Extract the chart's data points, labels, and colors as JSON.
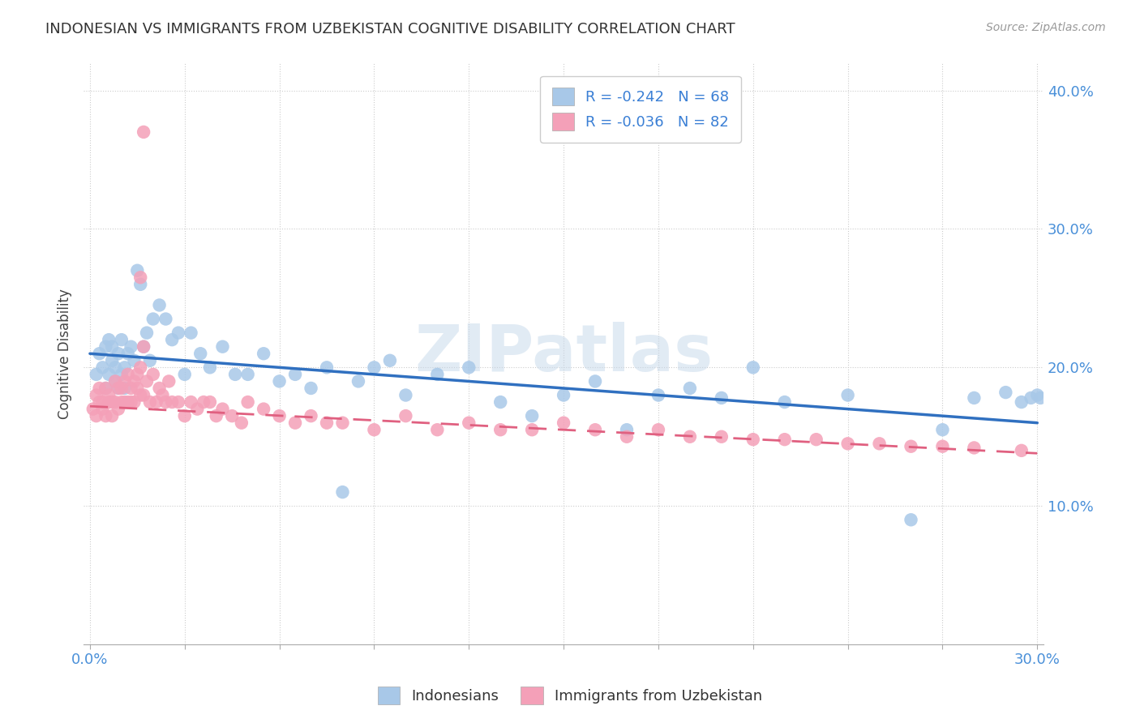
{
  "title": "INDONESIAN VS IMMIGRANTS FROM UZBEKISTAN COGNITIVE DISABILITY CORRELATION CHART",
  "source": "Source: ZipAtlas.com",
  "xlabel_indonesian": "Indonesians",
  "xlabel_uzbek": "Immigrants from Uzbekistan",
  "ylabel": "Cognitive Disability",
  "R_indonesian": -0.242,
  "N_indonesian": 68,
  "R_uzbek": -0.036,
  "N_uzbek": 82,
  "color_indonesian": "#a8c8e8",
  "color_uzbek": "#f4a0b8",
  "line_color_indonesian": "#3070c0",
  "line_color_uzbek": "#e06080",
  "watermark": "ZIPatlas",
  "xlim": [
    -0.002,
    0.302
  ],
  "ylim": [
    0.0,
    0.42
  ],
  "xtick_positions": [
    0.0,
    0.03,
    0.06,
    0.09,
    0.12,
    0.15,
    0.18,
    0.21,
    0.24,
    0.27,
    0.3
  ],
  "xtick_labels_show": [
    true,
    false,
    false,
    false,
    false,
    false,
    false,
    false,
    false,
    false,
    true
  ],
  "xtick_label_left": "0.0%",
  "xtick_label_right": "30.0%",
  "ytick_right": [
    0.1,
    0.2,
    0.3,
    0.4
  ],
  "ytick_right_labels": [
    "10.0%",
    "20.0%",
    "30.0%",
    "40.0%"
  ],
  "background_color": "#ffffff",
  "line_ind_y0": 0.21,
  "line_ind_y1": 0.16,
  "line_uzb_y0": 0.172,
  "line_uzb_y1": 0.138,
  "ind_x": [
    0.002,
    0.003,
    0.004,
    0.005,
    0.005,
    0.006,
    0.006,
    0.007,
    0.007,
    0.008,
    0.008,
    0.009,
    0.009,
    0.01,
    0.01,
    0.011,
    0.011,
    0.012,
    0.013,
    0.014,
    0.015,
    0.016,
    0.017,
    0.018,
    0.019,
    0.02,
    0.022,
    0.024,
    0.026,
    0.028,
    0.03,
    0.032,
    0.035,
    0.038,
    0.042,
    0.046,
    0.05,
    0.055,
    0.06,
    0.065,
    0.07,
    0.075,
    0.08,
    0.085,
    0.09,
    0.095,
    0.1,
    0.11,
    0.12,
    0.13,
    0.14,
    0.15,
    0.16,
    0.17,
    0.18,
    0.19,
    0.2,
    0.21,
    0.22,
    0.24,
    0.26,
    0.27,
    0.28,
    0.29,
    0.295,
    0.298,
    0.3,
    0.301
  ],
  "ind_y": [
    0.195,
    0.21,
    0.2,
    0.215,
    0.185,
    0.22,
    0.195,
    0.205,
    0.215,
    0.19,
    0.2,
    0.21,
    0.185,
    0.22,
    0.195,
    0.2,
    0.185,
    0.21,
    0.215,
    0.205,
    0.27,
    0.26,
    0.215,
    0.225,
    0.205,
    0.235,
    0.245,
    0.235,
    0.22,
    0.225,
    0.195,
    0.225,
    0.21,
    0.2,
    0.215,
    0.195,
    0.195,
    0.21,
    0.19,
    0.195,
    0.185,
    0.2,
    0.11,
    0.19,
    0.2,
    0.205,
    0.18,
    0.195,
    0.2,
    0.175,
    0.165,
    0.18,
    0.19,
    0.155,
    0.18,
    0.185,
    0.178,
    0.2,
    0.175,
    0.18,
    0.09,
    0.155,
    0.178,
    0.182,
    0.175,
    0.178,
    0.18,
    0.178
  ],
  "uzb_x": [
    0.001,
    0.002,
    0.002,
    0.003,
    0.003,
    0.004,
    0.004,
    0.005,
    0.005,
    0.006,
    0.006,
    0.007,
    0.007,
    0.008,
    0.008,
    0.009,
    0.009,
    0.01,
    0.01,
    0.011,
    0.011,
    0.012,
    0.012,
    0.013,
    0.013,
    0.014,
    0.014,
    0.015,
    0.015,
    0.016,
    0.016,
    0.017,
    0.017,
    0.018,
    0.019,
    0.02,
    0.021,
    0.022,
    0.023,
    0.024,
    0.025,
    0.026,
    0.028,
    0.03,
    0.032,
    0.034,
    0.036,
    0.038,
    0.04,
    0.042,
    0.045,
    0.048,
    0.05,
    0.055,
    0.06,
    0.065,
    0.07,
    0.075,
    0.08,
    0.09,
    0.1,
    0.11,
    0.12,
    0.13,
    0.14,
    0.15,
    0.16,
    0.17,
    0.18,
    0.19,
    0.2,
    0.21,
    0.22,
    0.23,
    0.24,
    0.25,
    0.26,
    0.27,
    0.28,
    0.295,
    0.016,
    0.017
  ],
  "uzb_y": [
    0.17,
    0.165,
    0.18,
    0.175,
    0.185,
    0.17,
    0.175,
    0.185,
    0.165,
    0.175,
    0.18,
    0.165,
    0.175,
    0.175,
    0.19,
    0.185,
    0.17,
    0.175,
    0.185,
    0.175,
    0.19,
    0.195,
    0.175,
    0.175,
    0.185,
    0.19,
    0.175,
    0.195,
    0.185,
    0.18,
    0.2,
    0.215,
    0.18,
    0.19,
    0.175,
    0.195,
    0.175,
    0.185,
    0.18,
    0.175,
    0.19,
    0.175,
    0.175,
    0.165,
    0.175,
    0.17,
    0.175,
    0.175,
    0.165,
    0.17,
    0.165,
    0.16,
    0.175,
    0.17,
    0.165,
    0.16,
    0.165,
    0.16,
    0.16,
    0.155,
    0.165,
    0.155,
    0.16,
    0.155,
    0.155,
    0.16,
    0.155,
    0.15,
    0.155,
    0.15,
    0.15,
    0.148,
    0.148,
    0.148,
    0.145,
    0.145,
    0.143,
    0.143,
    0.142,
    0.14,
    0.265,
    0.37
  ]
}
